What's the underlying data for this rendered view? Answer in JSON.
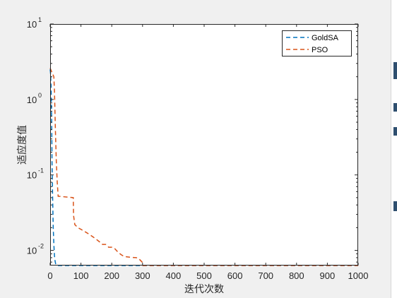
{
  "colors": {
    "figure_bg": "#f0f0f0",
    "axes_bg": "#ffffff",
    "axis": "#262626",
    "goldsa": "#0072bd",
    "pso": "#d95319"
  },
  "chart_data": {
    "type": "line",
    "title": "",
    "xlabel": "迭代次数",
    "ylabel": "适应度值",
    "xlim": [
      0,
      1000
    ],
    "ylim": [
      0.0063,
      10
    ],
    "yscale": "log",
    "grid": false,
    "legend_position": "top-right",
    "x_ticks": [
      "0",
      "100",
      "200",
      "300",
      "400",
      "500",
      "600",
      "700",
      "800",
      "900",
      "1000"
    ],
    "y_ticks": [
      {
        "base": "10",
        "exp": "1",
        "value": 10
      },
      {
        "base": "10",
        "exp": "0",
        "value": 1
      },
      {
        "base": "10",
        "exp": "-1",
        "value": 0.1
      },
      {
        "base": "10",
        "exp": "-2",
        "value": 0.01
      }
    ],
    "series": [
      {
        "name": "GoldSA",
        "color": "#0072bd",
        "x": [
          0,
          1,
          3,
          5,
          6,
          8,
          10,
          12,
          14,
          16,
          18,
          20,
          22,
          1000
        ],
        "y": [
          2.5,
          2.3,
          1.5,
          0.5,
          0.15,
          0.05,
          0.02,
          0.012,
          0.0085,
          0.0072,
          0.0066,
          0.0064,
          0.0063,
          0.0063
        ]
      },
      {
        "name": "PSO",
        "color": "#d95319",
        "x": [
          0,
          12,
          14,
          17,
          20,
          23,
          26,
          30,
          75,
          76,
          80,
          90,
          100,
          110,
          120,
          130,
          140,
          150,
          160,
          170,
          180,
          190,
          200,
          210,
          220,
          230,
          240,
          260,
          280,
          290,
          300,
          301,
          320,
          1000
        ],
        "y": [
          2.6,
          2.0,
          1.3,
          0.4,
          0.15,
          0.08,
          0.052,
          0.052,
          0.05,
          0.029,
          0.022,
          0.02,
          0.019,
          0.018,
          0.017,
          0.016,
          0.015,
          0.014,
          0.013,
          0.012,
          0.012,
          0.011,
          0.011,
          0.0105,
          0.0095,
          0.0088,
          0.0083,
          0.0081,
          0.008,
          0.0076,
          0.0069,
          0.0063,
          0.0063,
          0.0063
        ]
      }
    ]
  }
}
